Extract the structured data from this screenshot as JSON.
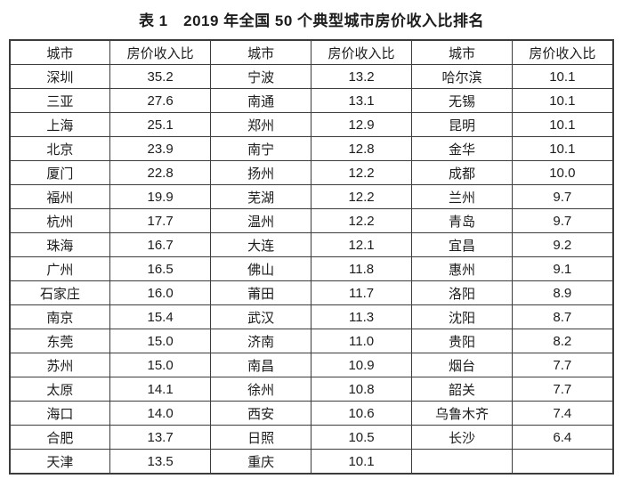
{
  "title": "表 1　2019 年全国 50 个典型城市房价收入比排名",
  "table": {
    "headers": [
      "城市",
      "房价收入比",
      "城市",
      "房价收入比",
      "城市",
      "房价收入比"
    ],
    "rows": [
      [
        "深圳",
        "35.2",
        "宁波",
        "13.2",
        "哈尔滨",
        "10.1"
      ],
      [
        "三亚",
        "27.6",
        "南通",
        "13.1",
        "无锡",
        "10.1"
      ],
      [
        "上海",
        "25.1",
        "郑州",
        "12.9",
        "昆明",
        "10.1"
      ],
      [
        "北京",
        "23.9",
        "南宁",
        "12.8",
        "金华",
        "10.1"
      ],
      [
        "厦门",
        "22.8",
        "扬州",
        "12.2",
        "成都",
        "10.0"
      ],
      [
        "福州",
        "19.9",
        "芜湖",
        "12.2",
        "兰州",
        "9.7"
      ],
      [
        "杭州",
        "17.7",
        "温州",
        "12.2",
        "青岛",
        "9.7"
      ],
      [
        "珠海",
        "16.7",
        "大连",
        "12.1",
        "宜昌",
        "9.2"
      ],
      [
        "广州",
        "16.5",
        "佛山",
        "11.8",
        "惠州",
        "9.1"
      ],
      [
        "石家庄",
        "16.0",
        "莆田",
        "11.7",
        "洛阳",
        "8.9"
      ],
      [
        "南京",
        "15.4",
        "武汉",
        "11.3",
        "沈阳",
        "8.7"
      ],
      [
        "东莞",
        "15.0",
        "济南",
        "11.0",
        "贵阳",
        "8.2"
      ],
      [
        "苏州",
        "15.0",
        "南昌",
        "10.9",
        "烟台",
        "7.7"
      ],
      [
        "太原",
        "14.1",
        "徐州",
        "10.8",
        "韶关",
        "7.7"
      ],
      [
        "海口",
        "14.0",
        "西安",
        "10.6",
        "乌鲁木齐",
        "7.4"
      ],
      [
        "合肥",
        "13.7",
        "日照",
        "10.5",
        "长沙",
        "6.4"
      ],
      [
        "天津",
        "13.5",
        "重庆",
        "10.1",
        "",
        ""
      ]
    ]
  },
  "colors": {
    "border": "#3c3c3c",
    "text": "#1c1c1c",
    "background": "#ffffff"
  }
}
